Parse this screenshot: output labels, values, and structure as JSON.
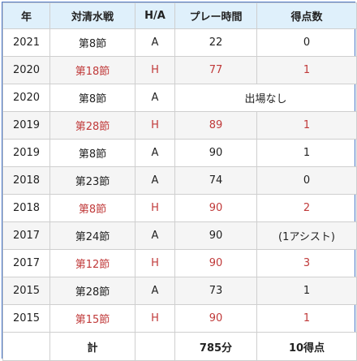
{
  "table": {
    "headers": {
      "year": "年",
      "match": "対清水戦",
      "home_away": "H/A",
      "play_time": "プレー時間",
      "goals": "得点数"
    },
    "rows": [
      {
        "year": "2021",
        "match": "第8節",
        "home_away": "A",
        "play_time": "22",
        "goals": "0"
      },
      {
        "year": "2020",
        "match": "第18節",
        "home_away": "H",
        "play_time": "77",
        "goals": "1"
      },
      {
        "year": "2020",
        "match": "第8節",
        "home_away": "A",
        "note": "出場なし"
      },
      {
        "year": "2019",
        "match": "第28節",
        "home_away": "H",
        "play_time": "89",
        "goals": "1"
      },
      {
        "year": "2019",
        "match": "第8節",
        "home_away": "A",
        "play_time": "90",
        "goals": "1"
      },
      {
        "year": "2018",
        "match": "第23節",
        "home_away": "A",
        "play_time": "74",
        "goals": "0"
      },
      {
        "year": "2018",
        "match": "第8節",
        "home_away": "H",
        "play_time": "90",
        "goals": "2"
      },
      {
        "year": "2017",
        "match": "第24節",
        "home_away": "A",
        "play_time": "90",
        "goals": "(1アシスト)"
      },
      {
        "year": "2017",
        "match": "第12節",
        "home_away": "H",
        "play_time": "90",
        "goals": "3"
      },
      {
        "year": "2015",
        "match": "第28節",
        "home_away": "A",
        "play_time": "73",
        "goals": "1"
      },
      {
        "year": "2015",
        "match": "第15節",
        "home_away": "H",
        "play_time": "90",
        "goals": "1"
      }
    ],
    "total": {
      "label": "計",
      "play_time": "785分",
      "goals": "10得点"
    }
  },
  "colors": {
    "header_bg": "#dff0fb",
    "home_text": "#c03a3a",
    "border": "#cfcfcf",
    "frame": "#4a78c8"
  }
}
